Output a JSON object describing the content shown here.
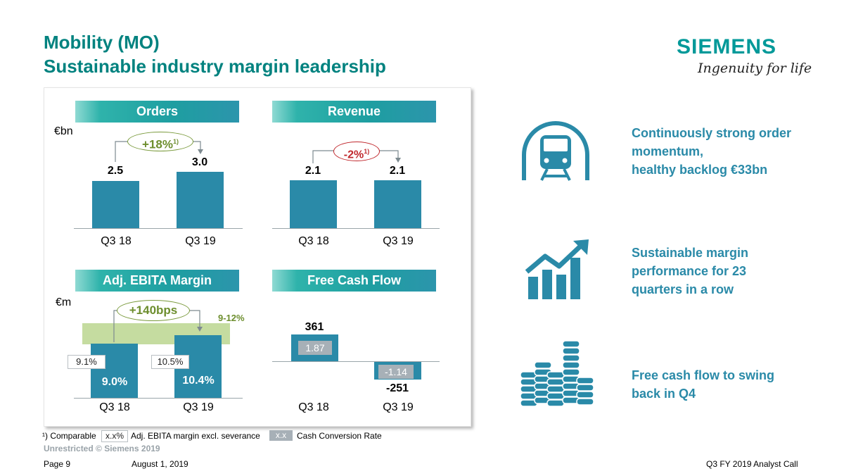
{
  "header": {
    "title_line1": "Mobility (MO)",
    "title_line2": "Sustainable industry margin leadership",
    "logo_text": "SIEMENS",
    "logo_tagline": "Ingenuity for life"
  },
  "colors": {
    "accent": "#00827f",
    "bar": "#2a8aa8",
    "target_band": "#c5dca0",
    "text_blue": "#2a8aa8"
  },
  "chart_data": [
    {
      "type": "bar",
      "title": "Orders",
      "unit": "€bn",
      "categories": [
        "Q3 18",
        "Q3 19"
      ],
      "values": [
        2.5,
        3.0
      ],
      "value_labels": [
        "2.5",
        "3.0"
      ],
      "change_label": "+18%",
      "change_sup": "1)"
    },
    {
      "type": "bar",
      "title": "Revenue",
      "categories": [
        "Q3 18",
        "Q3 19"
      ],
      "values": [
        2.1,
        2.1
      ],
      "value_labels": [
        "2.1",
        "2.1"
      ],
      "change_label": "-2%",
      "change_sup": "1)"
    },
    {
      "type": "bar",
      "title": "Adj. EBITA Margin",
      "unit": "€m",
      "categories": [
        "Q3 18",
        "Q3 19"
      ],
      "values": [
        9.0,
        10.4
      ],
      "value_labels": [
        "9.0%",
        "10.4%"
      ],
      "excl_severance_labels": [
        "9.1%",
        "10.5%"
      ],
      "change_label": "+140bps",
      "target_band": [
        9,
        12
      ],
      "target_label": "9-12%"
    },
    {
      "type": "bar",
      "title": "Free Cash Flow",
      "categories": [
        "Q3 18",
        "Q3 19"
      ],
      "values": [
        361,
        -251
      ],
      "value_labels": [
        "361",
        "-251"
      ],
      "cash_conversion_labels": [
        "1.87",
        "-1.14"
      ]
    }
  ],
  "highlights": [
    {
      "icon": "train-icon",
      "lines": [
        "Continuously strong order",
        "momentum,",
        "healthy backlog €33bn"
      ]
    },
    {
      "icon": "growth-chart-icon",
      "lines": [
        "Sustainable margin",
        "performance for 23",
        "quarters in a row"
      ]
    },
    {
      "icon": "coin-stacks-icon",
      "lines": [
        "Free cash flow to swing",
        "back in Q4"
      ]
    }
  ],
  "footnote": {
    "comparable": "¹) Comparable",
    "legend_box_margin": "x.x%",
    "legend_margin_text": "Adj. EBITA margin excl. severance",
    "legend_box_ccr": "x.x",
    "legend_ccr_text": "Cash Conversion Rate"
  },
  "footer": {
    "classification": "Unrestricted © Siemens 2019",
    "page": "Page 9",
    "date": "August 1, 2019",
    "event": "Q3 FY 2019 Analyst Call"
  }
}
